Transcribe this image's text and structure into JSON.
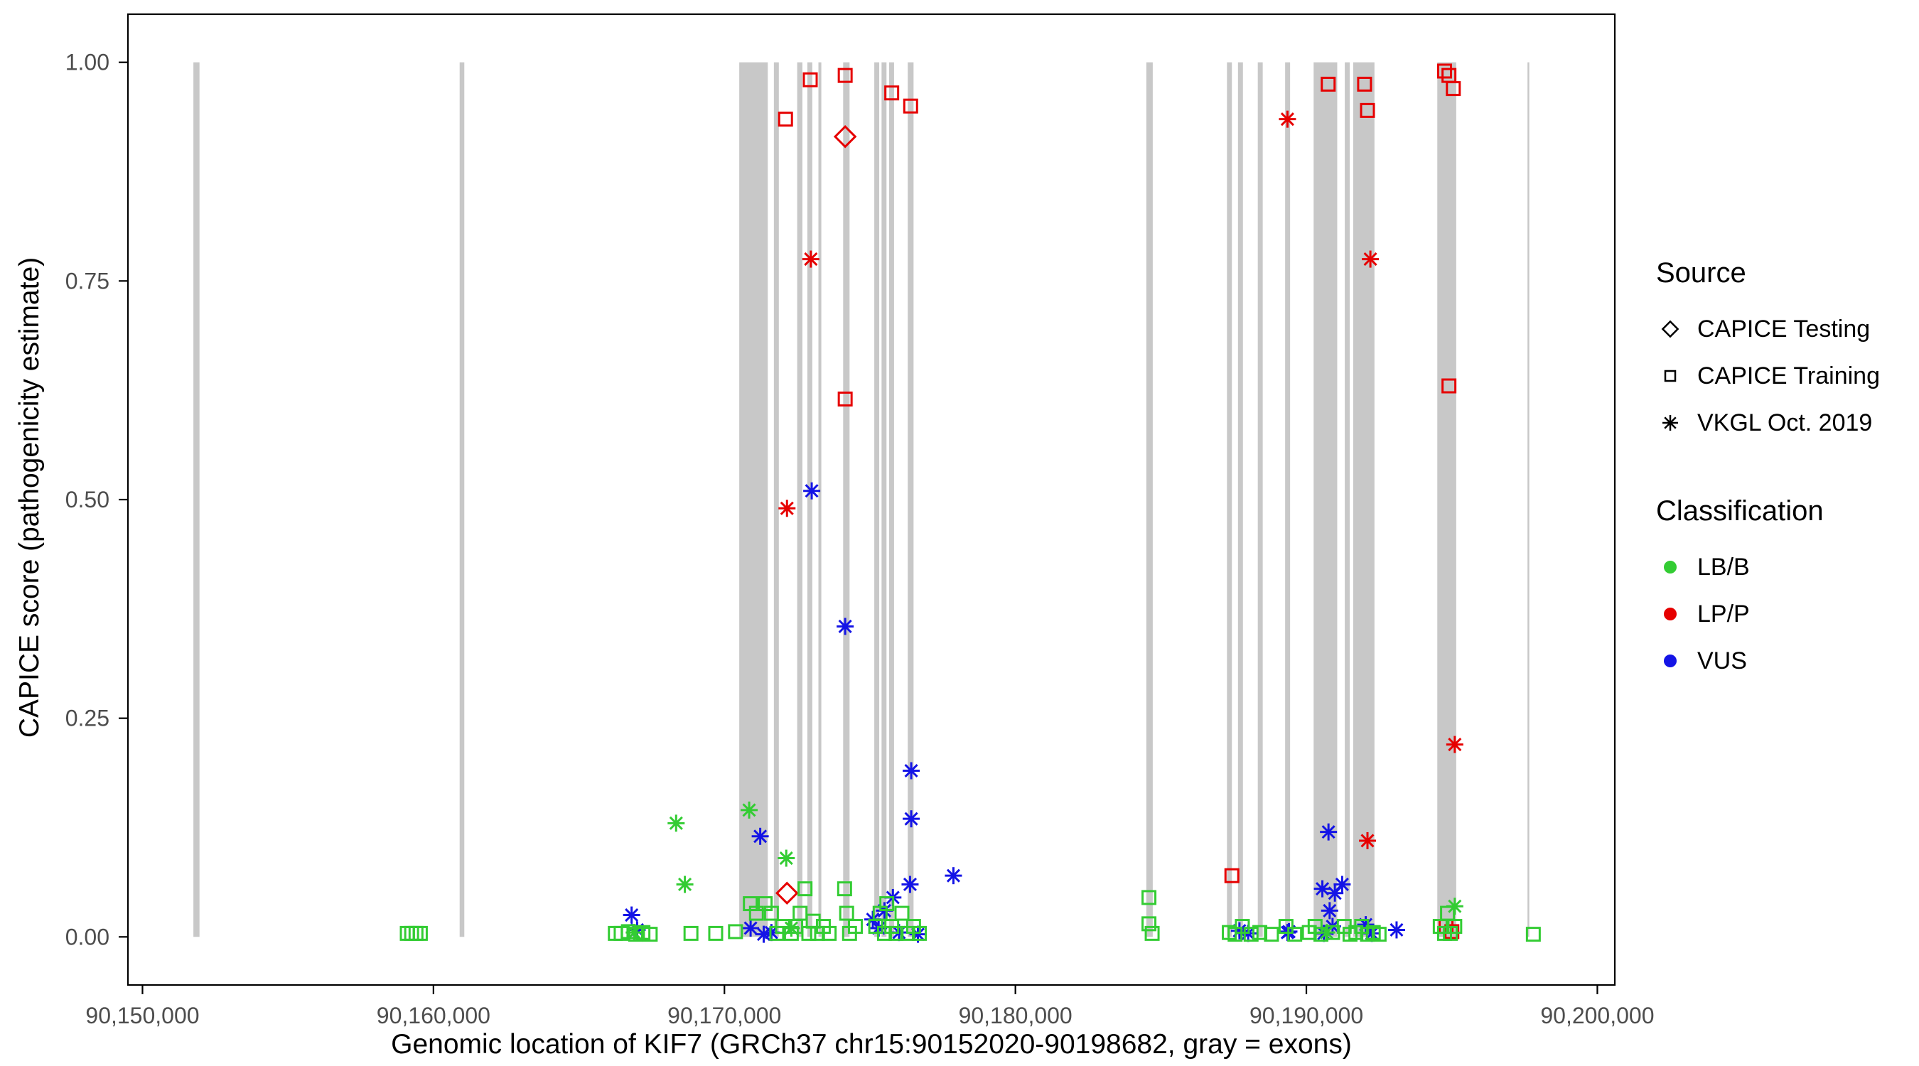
{
  "figure": {
    "background": "#FFFFFF"
  },
  "chart_data": {
    "type": "scatter",
    "title": "",
    "xlabel": "Genomic location of KIF7 (GRCh37 chr15:90152020-90198682, gray = exons)",
    "ylabel": "CAPICE score (pathogenicity estimate)",
    "xlim": [
      90149500,
      90200600
    ],
    "ylim": [
      -0.055,
      1.055
    ],
    "x_ticks": [
      90150000,
      90160000,
      90170000,
      90180000,
      90190000,
      90200000
    ],
    "x_tick_labels": [
      "90,150,000",
      "90,160,000",
      "90,170,000",
      "90,180,000",
      "90,190,000",
      "90,200,000"
    ],
    "y_ticks": [
      0,
      0.25,
      0.5,
      0.75,
      1
    ],
    "y_tick_labels": [
      "0.00",
      "0.25",
      "0.50",
      "0.75",
      "1.00"
    ],
    "grid": "off",
    "legend_position": "right",
    "exon_color": "#C8C8C8",
    "axis_text_color": "#4D4D4D",
    "exons": [
      [
        90151750,
        90151960
      ],
      [
        90160900,
        90161060
      ],
      [
        90170510,
        90171490
      ],
      [
        90171700,
        90171870
      ],
      [
        90172500,
        90172680
      ],
      [
        90172850,
        90173020
      ],
      [
        90173230,
        90173330
      ],
      [
        90174080,
        90174300
      ],
      [
        90175150,
        90175320
      ],
      [
        90175400,
        90175570
      ],
      [
        90175660,
        90175830
      ],
      [
        90176300,
        90176500
      ],
      [
        90184500,
        90184720
      ],
      [
        90187270,
        90187440
      ],
      [
        90187650,
        90187820
      ],
      [
        90188330,
        90188500
      ],
      [
        90189270,
        90189440
      ],
      [
        90190250,
        90191060
      ],
      [
        90191320,
        90191490
      ],
      [
        90191610,
        90192340
      ],
      [
        90194500,
        90195150
      ],
      [
        90197600,
        90197660
      ]
    ],
    "series": [
      {
        "name": "LP/P - CAPICE Training",
        "classification": "LP/P",
        "source": "CAPICE Training",
        "shape": "square",
        "color": "#E60000",
        "points": [
          [
            90172100,
            0.935
          ],
          [
            90172950,
            0.98
          ],
          [
            90174150,
            0.985
          ],
          [
            90175750,
            0.965
          ],
          [
            90176400,
            0.95
          ],
          [
            90174150,
            0.615
          ],
          [
            90190750,
            0.975
          ],
          [
            90192000,
            0.975
          ],
          [
            90192100,
            0.945
          ],
          [
            90194750,
            0.99
          ],
          [
            90194900,
            0.985
          ],
          [
            90195050,
            0.97
          ],
          [
            90194900,
            0.63
          ],
          [
            90187440,
            0.07
          ],
          [
            90194800,
            0.012
          ],
          [
            90195000,
            0.006
          ]
        ]
      },
      {
        "name": "LP/P - CAPICE Testing",
        "classification": "LP/P",
        "source": "CAPICE Testing",
        "shape": "diamond",
        "color": "#E60000",
        "points": [
          [
            90174150,
            0.915
          ],
          [
            90172150,
            0.05
          ]
        ]
      },
      {
        "name": "LP/P - VKGL Oct. 2019",
        "classification": "LP/P",
        "source": "VKGL Oct. 2019",
        "shape": "asterisk",
        "color": "#E60000",
        "points": [
          [
            90172970,
            0.775
          ],
          [
            90172150,
            0.49
          ],
          [
            90189350,
            0.935
          ],
          [
            90192200,
            0.775
          ],
          [
            90195100,
            0.22
          ],
          [
            90192100,
            0.11
          ]
        ]
      },
      {
        "name": "VUS - VKGL Oct. 2019",
        "classification": "VUS",
        "source": "VKGL Oct. 2019",
        "shape": "asterisk",
        "color": "#1414E6",
        "points": [
          [
            90173000,
            0.51
          ],
          [
            90174150,
            0.355
          ],
          [
            90176420,
            0.19
          ],
          [
            90176420,
            0.135
          ],
          [
            90171230,
            0.115
          ],
          [
            90177870,
            0.07
          ],
          [
            90176380,
            0.06
          ],
          [
            90175790,
            0.045
          ],
          [
            90175500,
            0.03
          ],
          [
            90166810,
            0.025
          ],
          [
            90167000,
            0.008
          ],
          [
            90170900,
            0.01
          ],
          [
            90171615,
            0.005
          ],
          [
            90171350,
            0.003
          ],
          [
            90175300,
            0.01
          ],
          [
            90176000,
            0.005
          ],
          [
            90176650,
            0.003
          ],
          [
            90175100,
            0.02
          ],
          [
            90190760,
            0.12
          ],
          [
            90190550,
            0.055
          ],
          [
            90190980,
            0.05
          ],
          [
            90191230,
            0.06
          ],
          [
            90190800,
            0.03
          ],
          [
            90190900,
            0.012
          ],
          [
            90190600,
            0.004
          ],
          [
            90187700,
            0.007
          ],
          [
            90188000,
            0.004
          ],
          [
            90189400,
            0.006
          ],
          [
            90192040,
            0.014
          ],
          [
            90192250,
            0.004
          ],
          [
            90193100,
            0.008
          ],
          [
            90189350,
            0.005
          ]
        ]
      },
      {
        "name": "LB/B - VKGL Oct. 2019",
        "classification": "LB/B",
        "source": "VKGL Oct. 2019",
        "shape": "asterisk",
        "color": "#33CC33",
        "points": [
          [
            90168340,
            0.13
          ],
          [
            90168640,
            0.06
          ],
          [
            90170850,
            0.145
          ],
          [
            90172125,
            0.09
          ],
          [
            90195100,
            0.035
          ],
          [
            90166900,
            0.005
          ],
          [
            90190700,
            0.005
          ],
          [
            90172300,
            0.01
          ]
        ]
      },
      {
        "name": "LB/B - CAPICE Training",
        "classification": "LB/B",
        "source": "CAPICE Training",
        "shape": "square",
        "color": "#33CC33",
        "points": [
          [
            90159100,
            0.004
          ],
          [
            90159250,
            0.004
          ],
          [
            90159400,
            0.004
          ],
          [
            90159550,
            0.004
          ],
          [
            90166250,
            0.004
          ],
          [
            90166450,
            0.004
          ],
          [
            90166700,
            0.006
          ],
          [
            90166950,
            0.003
          ],
          [
            90167200,
            0.005
          ],
          [
            90167450,
            0.003
          ],
          [
            90168850,
            0.004
          ],
          [
            90169700,
            0.004
          ],
          [
            90170380,
            0.006
          ],
          [
            90170890,
            0.038
          ],
          [
            90171100,
            0.027
          ],
          [
            90171400,
            0.038
          ],
          [
            90171615,
            0.027
          ],
          [
            90171800,
            0.004
          ],
          [
            90172000,
            0.012
          ],
          [
            90172300,
            0.004
          ],
          [
            90172450,
            0.012
          ],
          [
            90172600,
            0.027
          ],
          [
            90172770,
            0.055
          ],
          [
            90172900,
            0.004
          ],
          [
            90173050,
            0.018
          ],
          [
            90173200,
            0.004
          ],
          [
            90173400,
            0.012
          ],
          [
            90173600,
            0.004
          ],
          [
            90174130,
            0.055
          ],
          [
            90174200,
            0.027
          ],
          [
            90174300,
            0.004
          ],
          [
            90174500,
            0.012
          ],
          [
            90175200,
            0.012
          ],
          [
            90175350,
            0.027
          ],
          [
            90175500,
            0.004
          ],
          [
            90175580,
            0.038
          ],
          [
            90175750,
            0.012
          ],
          [
            90175900,
            0.004
          ],
          [
            90176100,
            0.027
          ],
          [
            90176300,
            0.004
          ],
          [
            90176500,
            0.012
          ],
          [
            90176700,
            0.004
          ],
          [
            90184590,
            0.045
          ],
          [
            90184590,
            0.015
          ],
          [
            90184700,
            0.004
          ],
          [
            90187350,
            0.005
          ],
          [
            90187550,
            0.003
          ],
          [
            90187800,
            0.012
          ],
          [
            90188100,
            0.003
          ],
          [
            90188400,
            0.005
          ],
          [
            90188800,
            0.003
          ],
          [
            90189300,
            0.012
          ],
          [
            90189600,
            0.003
          ],
          [
            90190100,
            0.005
          ],
          [
            90190300,
            0.012
          ],
          [
            90190500,
            0.003
          ],
          [
            90190900,
            0.005
          ],
          [
            90191300,
            0.012
          ],
          [
            90191500,
            0.003
          ],
          [
            90191700,
            0.005
          ],
          [
            90191900,
            0.012
          ],
          [
            90192100,
            0.003
          ],
          [
            90192300,
            0.005
          ],
          [
            90192500,
            0.003
          ],
          [
            90194600,
            0.012
          ],
          [
            90194750,
            0.004
          ],
          [
            90194850,
            0.027
          ],
          [
            90194950,
            0.004
          ],
          [
            90195100,
            0.012
          ],
          [
            90197800,
            0.003
          ]
        ]
      }
    ]
  },
  "legend": {
    "source": {
      "title": "Source",
      "items": [
        {
          "label": "CAPICE Testing",
          "shape": "diamond"
        },
        {
          "label": "CAPICE Training",
          "shape": "square"
        },
        {
          "label": "VKGL Oct. 2019",
          "shape": "asterisk"
        }
      ]
    },
    "classification": {
      "title": "Classification",
      "items": [
        {
          "label": "LB/B",
          "color": "#33CC33"
        },
        {
          "label": "LP/P",
          "color": "#E60000"
        },
        {
          "label": "VUS",
          "color": "#1414E6"
        }
      ]
    }
  }
}
